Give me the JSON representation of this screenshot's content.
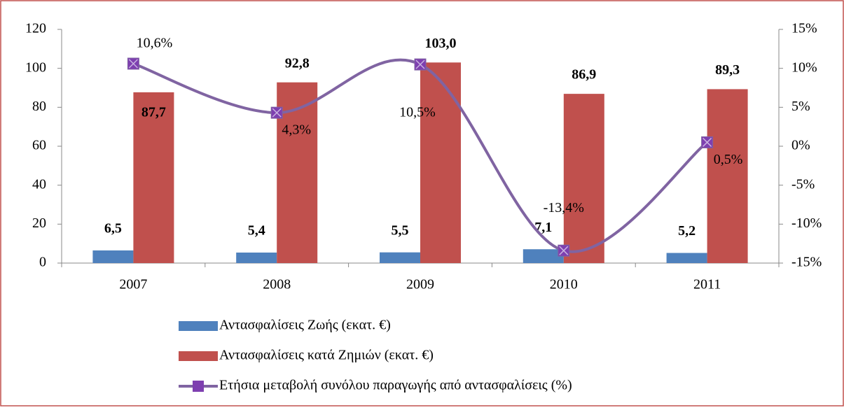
{
  "chart_data": {
    "type": "bar_line",
    "categories": [
      "2007",
      "2008",
      "2009",
      "2010",
      "2011"
    ],
    "series": [
      {
        "name": "Αντασφαλίσεις Ζωής (εκατ. €)",
        "type": "bar",
        "color": "#4f81bd",
        "values": [
          6.5,
          5.4,
          5.5,
          7.1,
          5.2
        ],
        "value_labels": [
          "6,5",
          "5,4",
          "5,5",
          "7,1",
          "5,2"
        ]
      },
      {
        "name": "Αντασφαλίσεις κατά Ζημιών (εκατ. €)",
        "type": "bar",
        "color": "#c0504d",
        "values": [
          87.7,
          92.8,
          103.0,
          86.9,
          89.3
        ],
        "value_labels": [
          "87,7",
          "92,8",
          "103,0",
          "86,9",
          "89,3"
        ]
      },
      {
        "name": "Ετήσια μεταβολή συνόλου παραγωγής από αντασφαλίσεις (%)",
        "type": "line",
        "axis": "y2",
        "color": "#8064a2",
        "marker_color": "#7e3fb0",
        "values": [
          10.6,
          4.3,
          10.5,
          -13.4,
          0.5
        ],
        "value_labels": [
          "10,6%",
          "4,3%",
          "10,5%",
          "-13,4%",
          "0,5%"
        ]
      }
    ],
    "ylim": [
      0,
      120
    ],
    "yticks": [
      0,
      20,
      40,
      60,
      80,
      100,
      120
    ],
    "y2lim": [
      -15,
      15
    ],
    "y2ticks": [
      {
        "value": -15,
        "label": "-15%"
      },
      {
        "value": -10,
        "label": "-10%"
      },
      {
        "value": -5,
        "label": "-5%"
      },
      {
        "value": 0,
        "label": "0%"
      },
      {
        "value": 5,
        "label": "5%"
      },
      {
        "value": 10,
        "label": "10%"
      },
      {
        "value": 15,
        "label": "15%"
      }
    ],
    "legend": "bottom"
  }
}
